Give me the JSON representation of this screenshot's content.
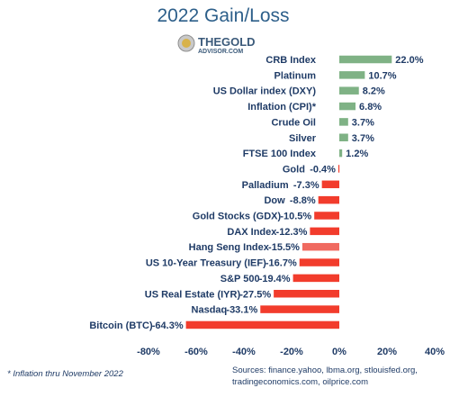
{
  "chart_data": {
    "type": "bar",
    "orientation": "horizontal",
    "title": "2022 Gain/Loss",
    "categories": [
      "CRB Index",
      "Platinum",
      "US Dollar index (DXY)",
      "Inflation (CPI)*",
      "Crude Oil",
      "Silver",
      "FTSE 100 Index",
      "Gold",
      "Palladium",
      "Dow",
      "Gold Stocks (GDX)",
      "DAX Index",
      "Hang Seng Index",
      "US 10-Year Treasury (IEF)",
      "S&P 500",
      "US Real Estate (IYR)",
      "Nasdaq",
      "Bitcoin (BTC)"
    ],
    "values": [
      22.0,
      10.7,
      8.2,
      6.8,
      3.7,
      3.7,
      1.2,
      -0.4,
      -7.3,
      -8.8,
      -10.5,
      -12.3,
      -15.5,
      -16.7,
      -19.4,
      -27.5,
      -33.1,
      -64.3
    ],
    "value_labels": [
      "22.0%",
      "10.7%",
      "8.2%",
      "6.8%",
      "3.7%",
      "3.7%",
      "1.2%",
      "-0.4%",
      "-7.3%",
      "-8.8%",
      "-10.5%",
      "-12.3%",
      "-15.5%",
      "-16.7%",
      "-19.4%",
      "-27.5%",
      "-33.1%",
      "-64.3%"
    ],
    "xlim": [
      -80,
      40
    ],
    "xticks": [
      -80,
      -60,
      -40,
      -20,
      0,
      20,
      40
    ],
    "xtick_labels": [
      "-80%",
      "-60%",
      "-40%",
      "-20%",
      "0%",
      "20%",
      "40%"
    ],
    "xlabel": "",
    "ylabel": "",
    "grid": false,
    "colors": {
      "positive": "#7fb285",
      "negative": "#f23c2c",
      "highlight": "#f06a60",
      "text": "#1f3b66",
      "title": "#2d5f8a"
    },
    "highlight_index": 12
  },
  "logo": {
    "line1": "THEGOLD",
    "line2": "ADVISOR.COM"
  },
  "footnote": "* Inflation thru November 2022",
  "sources_line1": "Sources: finance.yahoo, lbma.org, stlouisfed.org,",
  "sources_line2": "tradingeconomics.com, oilprice.com"
}
